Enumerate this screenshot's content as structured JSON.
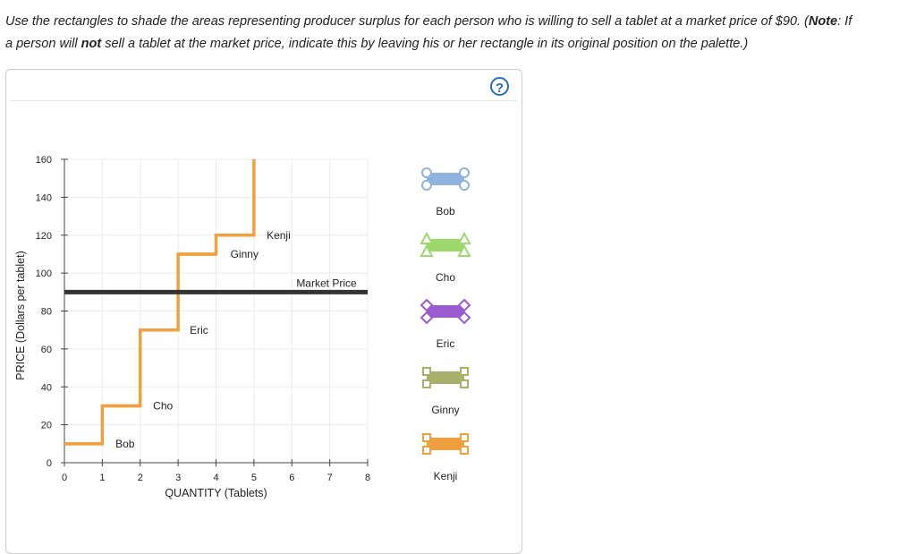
{
  "instructions": {
    "part1": "Use the rectangles to shade the areas representing producer surplus for each person who is willing to sell a tablet at a market price of $90. (",
    "note_label": "Note",
    "part2": ": If",
    "part3": "a person will ",
    "not_word": "not",
    "part4": " sell a tablet at the market price, indicate this by leaving his or her rectangle in its original position on the palette.)"
  },
  "help_icon": {
    "symbol": "?",
    "color": "#2a6db5"
  },
  "chart_data": {
    "type": "line",
    "xlabel": "QUANTITY (Tablets)",
    "ylabel": "PRICE (Dollars per tablet)",
    "xlim": [
      0,
      8
    ],
    "ylim": [
      0,
      160
    ],
    "x_ticks": [
      0,
      1,
      2,
      3,
      4,
      5,
      6,
      7,
      8
    ],
    "y_ticks": [
      0,
      20,
      40,
      60,
      80,
      100,
      120,
      140,
      160
    ],
    "grid": true,
    "supply_color": "#f0a040",
    "supply_steps": [
      {
        "name": "Bob",
        "x0": 0,
        "x1": 1,
        "price": 10
      },
      {
        "name": "Cho",
        "x0": 1,
        "x1": 2,
        "price": 30
      },
      {
        "name": "Eric",
        "x0": 2,
        "x1": 3,
        "price": 70
      },
      {
        "name": "Ginny",
        "x0": 3,
        "x1": 4,
        "price": 110
      },
      {
        "name": "Kenji",
        "x0": 4,
        "x1": 5,
        "price": 120
      }
    ],
    "supply_end_price": 160,
    "step_labels": [
      {
        "text": "Bob",
        "x": 1.6,
        "y": 0
      },
      {
        "text": "Cho",
        "x": 2.6,
        "y": 20
      },
      {
        "text": "Eric",
        "x": 3.55,
        "y": 60
      },
      {
        "text": "Ginny",
        "x": 4.75,
        "y": 100
      },
      {
        "text": "Kenji",
        "x": 5.65,
        "y": 110
      }
    ],
    "market_price": {
      "label": "Market Price",
      "value": 90,
      "color": "#333333"
    }
  },
  "palette": [
    {
      "label": "Bob",
      "color": "#8fb3dc",
      "handle": "circle"
    },
    {
      "label": "Cho",
      "color": "#9dd86c",
      "handle": "triangle"
    },
    {
      "label": "Eric",
      "color": "#9a5bd1",
      "handle": "diamond"
    },
    {
      "label": "Ginny",
      "color": "#a8b06c",
      "handle": "square"
    },
    {
      "label": "Kenji",
      "color": "#f0a040",
      "handle": "square"
    }
  ]
}
